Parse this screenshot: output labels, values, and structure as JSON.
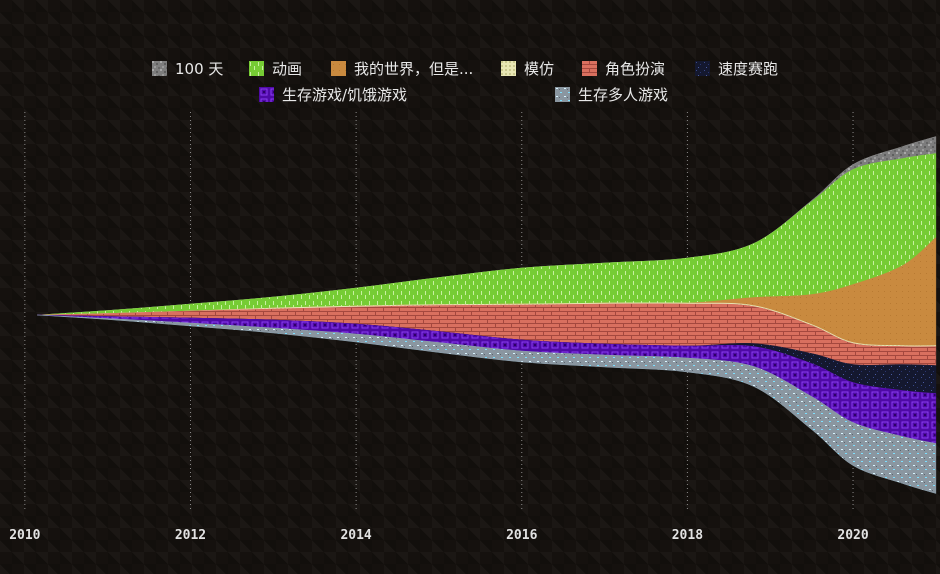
{
  "chart_data": {
    "type": "area",
    "subtype": "streamgraph",
    "x": [
      2010.15,
      2011,
      2012,
      2013,
      2014,
      2015,
      2016,
      2017,
      2018,
      2018.8,
      2019.5,
      2020,
      2020.6,
      2021
    ],
    "xlim": [
      2009.7,
      2021.05
    ],
    "x_ticks": [
      "2010",
      "2012",
      "2014",
      "2016",
      "2018",
      "2020"
    ],
    "grid_x": true,
    "legend_position": "top",
    "series": [
      {
        "name": "100 天",
        "color": "#8c8c8c",
        "values": [
          0,
          0,
          0,
          0,
          0,
          0,
          0,
          0,
          0,
          0,
          1,
          5,
          12,
          17
        ]
      },
      {
        "name": "动画",
        "color": "#7ed33c",
        "values": [
          0,
          3,
          7,
          11,
          18,
          27,
          36,
          40,
          45,
          54,
          93,
          115,
          107,
          84
        ]
      },
      {
        "name": "我的世界，但是...",
        "color": "#c98a3f",
        "values": [
          0,
          0,
          0,
          0,
          0,
          0,
          0,
          0,
          0,
          8,
          30,
          58,
          80,
          108
        ]
      },
      {
        "name": "模仿",
        "color": "#e8e6b4",
        "values": [
          0,
          0,
          0,
          1,
          1,
          1,
          1,
          1,
          1,
          1,
          1,
          1,
          1,
          1
        ]
      },
      {
        "name": "角色扮演",
        "color": "#d36c5e",
        "values": [
          0,
          3,
          7,
          11,
          17,
          26,
          35,
          40,
          42,
          37,
          28,
          21,
          18,
          19
        ]
      },
      {
        "name": "速度赛跑",
        "color": "#161a38",
        "values": [
          0,
          0,
          0,
          0,
          0,
          0,
          0,
          0,
          0,
          3,
          10,
          18,
          26,
          28
        ]
      },
      {
        "name": "生存游戏/饥饿游戏",
        "color": "#5c0fb8",
        "values": [
          0,
          2,
          5,
          8,
          10,
          11,
          11,
          11,
          12,
          20,
          33,
          40,
          46,
          50
        ]
      },
      {
        "name": "生存多人游戏",
        "color": "#8ea4b2",
        "values": [
          0,
          1,
          3,
          5,
          8,
          10,
          11,
          12,
          14,
          20,
          33,
          43,
          47,
          50
        ]
      }
    ]
  }
}
